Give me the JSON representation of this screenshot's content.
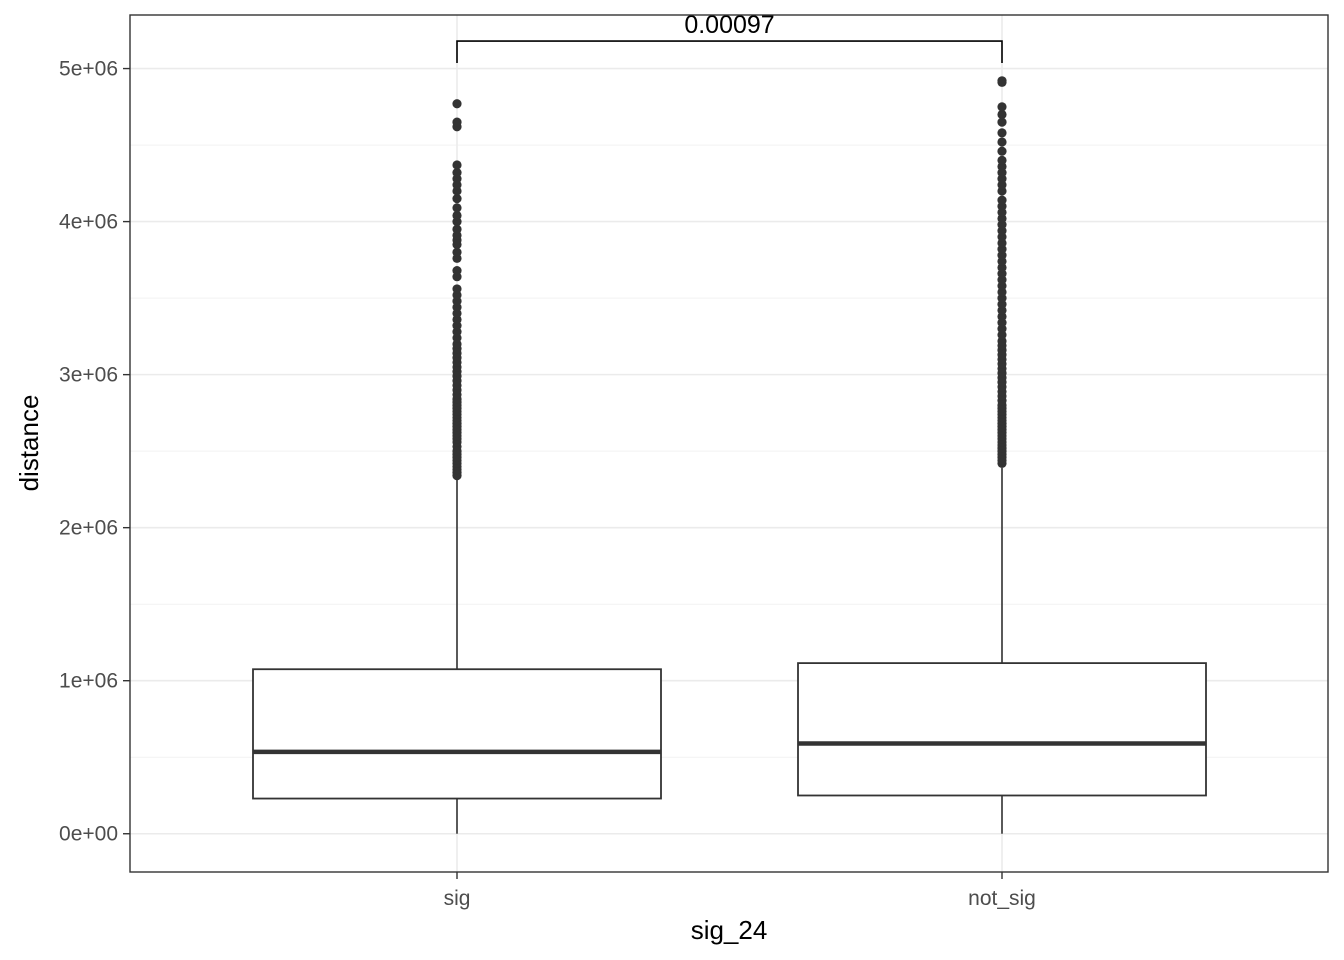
{
  "chart_data": {
    "type": "boxplot",
    "title": "",
    "xlabel": "sig_24",
    "ylabel": "distance",
    "ylim": [
      -250000,
      5350000
    ],
    "yticks": [
      0,
      1000000,
      2000000,
      3000000,
      4000000,
      5000000
    ],
    "ytick_labels": [
      "0e+00",
      "1e+06",
      "2e+06",
      "3e+06",
      "4e+06",
      "5e+06"
    ],
    "grid": true,
    "theme": "bw",
    "colors": {
      "box_line": "#333333",
      "outlier": "#333333",
      "grid": "#ebebeb",
      "panel_border": "#333333"
    },
    "categories": [
      "sig",
      "not_sig"
    ],
    "boxes": [
      {
        "category": "sig",
        "whisker_low": 0,
        "q1": 230000,
        "median": 535000,
        "q3": 1075000,
        "whisker_high": 2320000,
        "outliers": [
          2340000,
          2360000,
          2380000,
          2400000,
          2420000,
          2440000,
          2460000,
          2480000,
          2500000,
          2530000,
          2560000,
          2580000,
          2600000,
          2620000,
          2640000,
          2660000,
          2680000,
          2700000,
          2720000,
          2740000,
          2760000,
          2780000,
          2800000,
          2820000,
          2840000,
          2870000,
          2900000,
          2930000,
          2960000,
          2990000,
          3020000,
          3050000,
          3080000,
          3110000,
          3140000,
          3170000,
          3200000,
          3240000,
          3280000,
          3320000,
          3360000,
          3400000,
          3440000,
          3480000,
          3520000,
          3560000,
          3640000,
          3680000,
          3760000,
          3800000,
          3850000,
          3880000,
          3910000,
          3950000,
          4000000,
          4040000,
          4090000,
          4150000,
          4200000,
          4240000,
          4280000,
          4320000,
          4370000,
          4620000,
          4650000,
          4770000
        ]
      },
      {
        "category": "not_sig",
        "whisker_low": 0,
        "q1": 250000,
        "median": 590000,
        "q3": 1115000,
        "whisker_high": 2390000,
        "outliers": [
          2420000,
          2440000,
          2460000,
          2480000,
          2500000,
          2520000,
          2540000,
          2560000,
          2580000,
          2600000,
          2620000,
          2640000,
          2660000,
          2680000,
          2700000,
          2720000,
          2740000,
          2760000,
          2780000,
          2800000,
          2830000,
          2860000,
          2890000,
          2920000,
          2950000,
          2980000,
          3010000,
          3040000,
          3070000,
          3100000,
          3130000,
          3160000,
          3190000,
          3220000,
          3260000,
          3300000,
          3340000,
          3380000,
          3420000,
          3460000,
          3500000,
          3540000,
          3580000,
          3620000,
          3660000,
          3700000,
          3740000,
          3780000,
          3820000,
          3860000,
          3900000,
          3940000,
          3980000,
          4020000,
          4060000,
          4100000,
          4140000,
          4200000,
          4240000,
          4280000,
          4320000,
          4360000,
          4400000,
          4460000,
          4520000,
          4580000,
          4650000,
          4700000,
          4750000,
          4910000,
          4920000
        ]
      }
    ],
    "annotations": [
      {
        "type": "significance_bracket",
        "from": "sig",
        "to": "not_sig",
        "label": "0.00097",
        "y": 5180000
      }
    ]
  }
}
